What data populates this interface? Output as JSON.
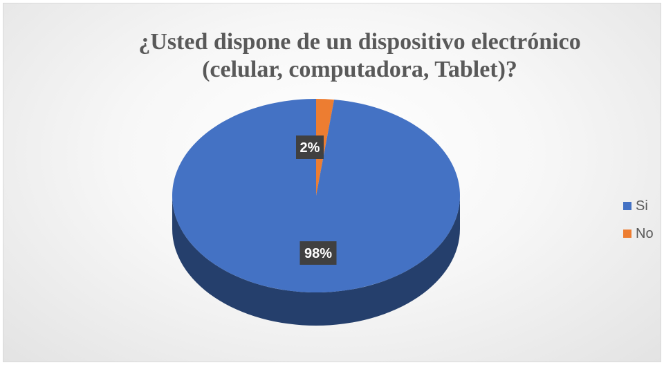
{
  "chart_data": {
    "type": "pie",
    "title": "¿Usted dispone de un dispositivo electrónico (celular, computadora, Tablet)?",
    "categories": [
      "Si",
      "No"
    ],
    "values": [
      98,
      2
    ],
    "labels": [
      "98%",
      "2%"
    ],
    "colors": [
      "#4472C4",
      "#ED7D31"
    ],
    "legend_position": "right",
    "style": "3d"
  }
}
